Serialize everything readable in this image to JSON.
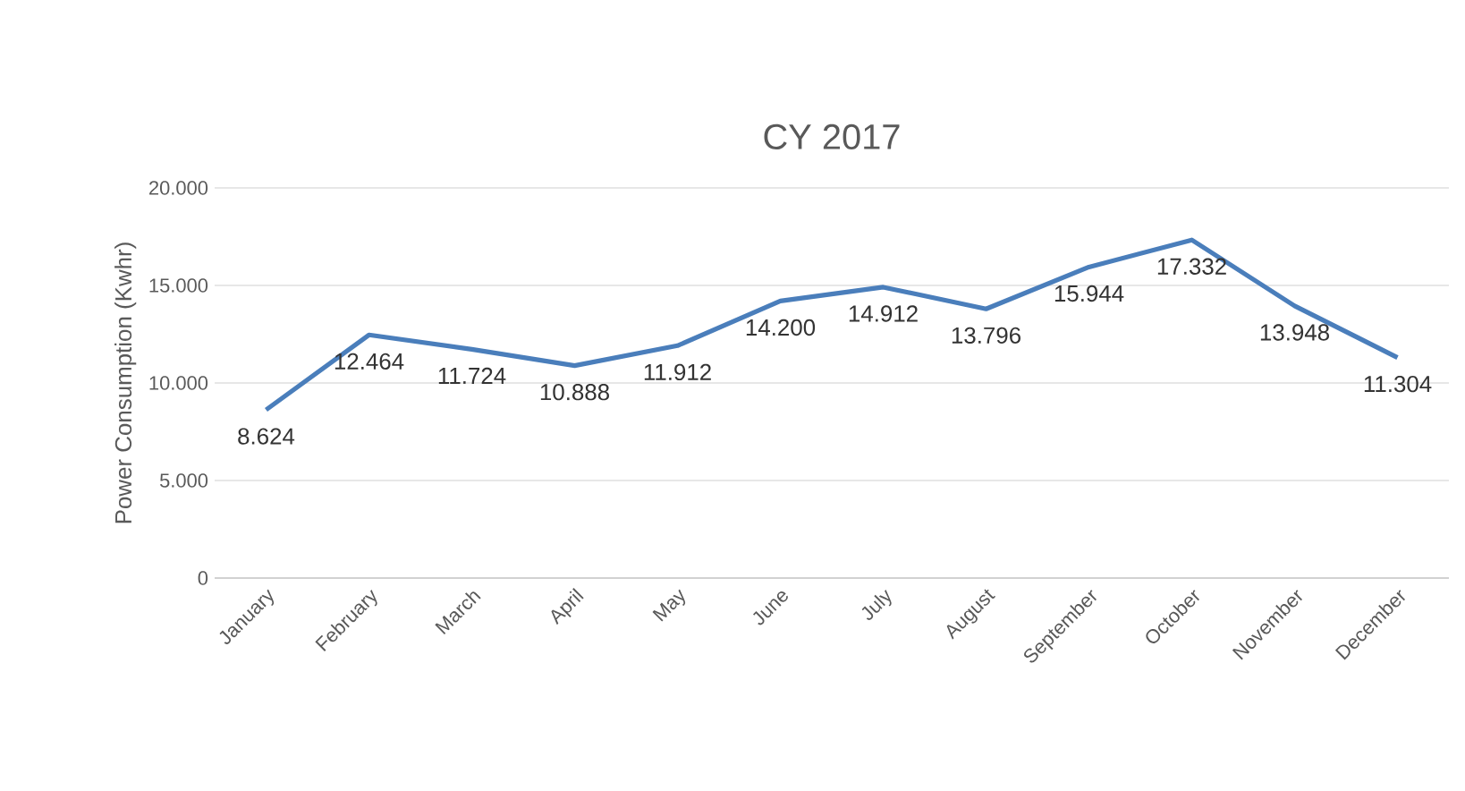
{
  "chart_data": {
    "type": "line",
    "title": "CY 2017",
    "ylabel": "Power Consumption (Kwhr)",
    "categories": [
      "January",
      "February",
      "March",
      "April",
      "May",
      "June",
      "July",
      "August",
      "September",
      "October",
      "November",
      "December"
    ],
    "series": [
      {
        "color": "#4a7ebb",
        "values": [
          8624,
          12464,
          11724,
          10888,
          11912,
          14200,
          14912,
          13796,
          15944,
          17332,
          13948,
          11304
        ],
        "value_labels": [
          "8.624",
          "12.464",
          "11.724",
          "10.888",
          "11.912",
          "14.200",
          "14.912",
          "13.796",
          "15.944",
          "17.332",
          "13.948",
          "11.304"
        ]
      }
    ],
    "ylim": [
      0,
      20000
    ],
    "yticks": [
      {
        "value": 0,
        "label": "0"
      },
      {
        "value": 5000,
        "label": "5.000"
      },
      {
        "value": 10000,
        "label": "10.000"
      },
      {
        "value": 15000,
        "label": "15.000"
      },
      {
        "value": 20000,
        "label": "20.000"
      }
    ],
    "grid": "y",
    "marker": "none",
    "line_style": "solid"
  }
}
